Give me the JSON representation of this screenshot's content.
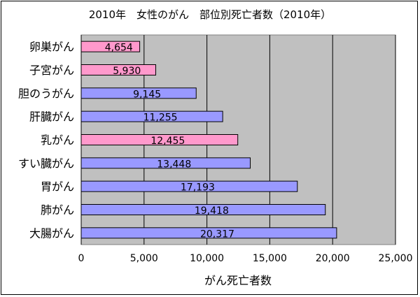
{
  "chart_data": {
    "type": "bar",
    "orientation": "horizontal",
    "title": "2010年　女性のがん　部位別死亡者数（2010年）",
    "xlabel": "がん死亡者数",
    "ylabel": "",
    "xlim": [
      0,
      25000
    ],
    "xticks": [
      0,
      5000,
      10000,
      15000,
      20000,
      25000
    ],
    "xtick_labels": [
      "0",
      "5,000",
      "10,000",
      "15,000",
      "20,000",
      "25,000"
    ],
    "categories": [
      "卵巣がん",
      "子宮がん",
      "胆のうがん",
      "肝臓がん",
      "乳がん",
      "すい臓がん",
      "胃がん",
      "肺がん",
      "大腸がん"
    ],
    "values": [
      4654,
      5930,
      9145,
      11255,
      12455,
      13448,
      17193,
      19418,
      20317
    ],
    "value_labels": [
      "4,654",
      "5,930",
      "9,145",
      "11,255",
      "12,455",
      "13,448",
      "17,193",
      "19,418",
      "20,317"
    ],
    "highlighted_categories": [
      "卵巣がん",
      "子宮がん",
      "乳がん"
    ],
    "grid": true,
    "legend": "none",
    "colors": {
      "plot_background": "#c0c0c0",
      "bar_default": "#9999ff",
      "bar_highlight": "#ff99cc",
      "gridline": "#000000"
    }
  }
}
